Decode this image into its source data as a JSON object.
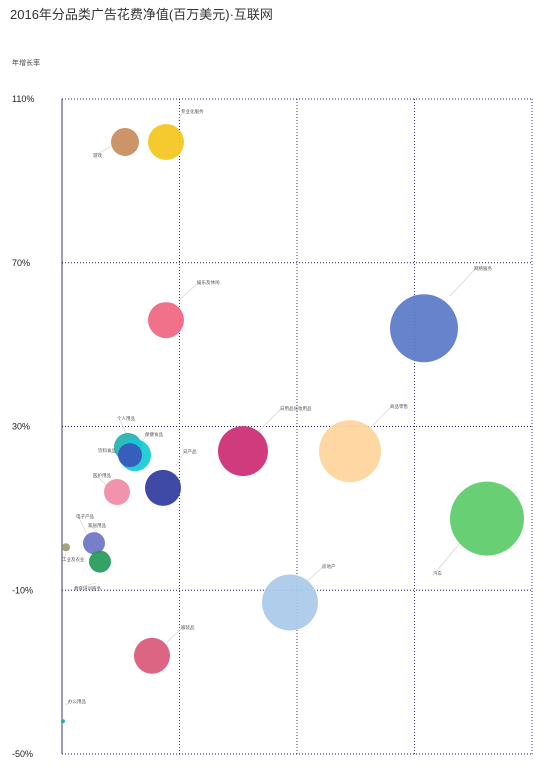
{
  "title": "2016年分品类广告花费净值(百万美元)·互联网",
  "chart_data": {
    "type": "bubble",
    "title": "2016年分品类广告花费净值(百万美元)·互联网",
    "ylabel": "年增长率",
    "xlabel": "",
    "ylim": [
      -50,
      110
    ],
    "yticks": [
      110,
      70,
      30,
      -10,
      -50
    ],
    "ytick_labels": [
      "110%",
      "70%",
      "30%",
      "-10%",
      "-50%"
    ],
    "x_gridlines": 4,
    "grid": true,
    "points": [
      {
        "label": "游戏",
        "y": 99.5,
        "bubble": 14,
        "color": "#c98a5c"
      },
      {
        "label": "专业化服务",
        "y": 99.5,
        "bubble": 18,
        "color": "#f4c51c"
      },
      {
        "label": "娱乐及休闲",
        "y": 56,
        "bubble": 18,
        "color": "#f06480"
      },
      {
        "label": "网络服务",
        "y": 54,
        "bubble": 34,
        "color": "#5a78c8"
      },
      {
        "label": "个人用品",
        "y": 25,
        "bubble": 14,
        "color": "#20b2b2"
      },
      {
        "label": "保健食品",
        "y": 23,
        "bubble": 16,
        "color": "#15c9d4"
      },
      {
        "label": "饮料食品",
        "y": 23,
        "bubble": 12,
        "color": "#3a55bb"
      },
      {
        "label": "医护用品",
        "y": 14,
        "bubble": 13,
        "color": "#f18aa6"
      },
      {
        "label": "日产品",
        "y": 15,
        "bubble": 18,
        "color": "#2f3b9e"
      },
      {
        "label": "日用品化妆用品",
        "y": 24,
        "bubble": 25,
        "color": "#cc2a72"
      },
      {
        "label": "商品零售",
        "y": 24,
        "bubble": 31,
        "color": "#ffd49b"
      },
      {
        "label": "汽车",
        "y": 7.5,
        "bubble": 37,
        "color": "#5ccb68"
      },
      {
        "label": "房地产",
        "y": -13,
        "bubble": 28,
        "color": "#a9c9ea"
      },
      {
        "label": "服装品",
        "y": -26,
        "bubble": 18,
        "color": "#d9587a"
      },
      {
        "label": "家居用品",
        "y": 1.5,
        "bubble": 11,
        "color": "#6c74c4"
      },
      {
        "label": "电子产品",
        "y": -3,
        "bubble": 11,
        "color": "#249a58"
      },
      {
        "label": "工业及农业",
        "y": 0.5,
        "bubble": 4,
        "color": "#9c9c6f"
      },
      {
        "label": "教育培训服务",
        "y": -6,
        "bubble": 0,
        "color": "#999999"
      },
      {
        "label": "办公用品",
        "y": -42,
        "bubble": 2,
        "color": "#1ea8a8"
      }
    ]
  }
}
